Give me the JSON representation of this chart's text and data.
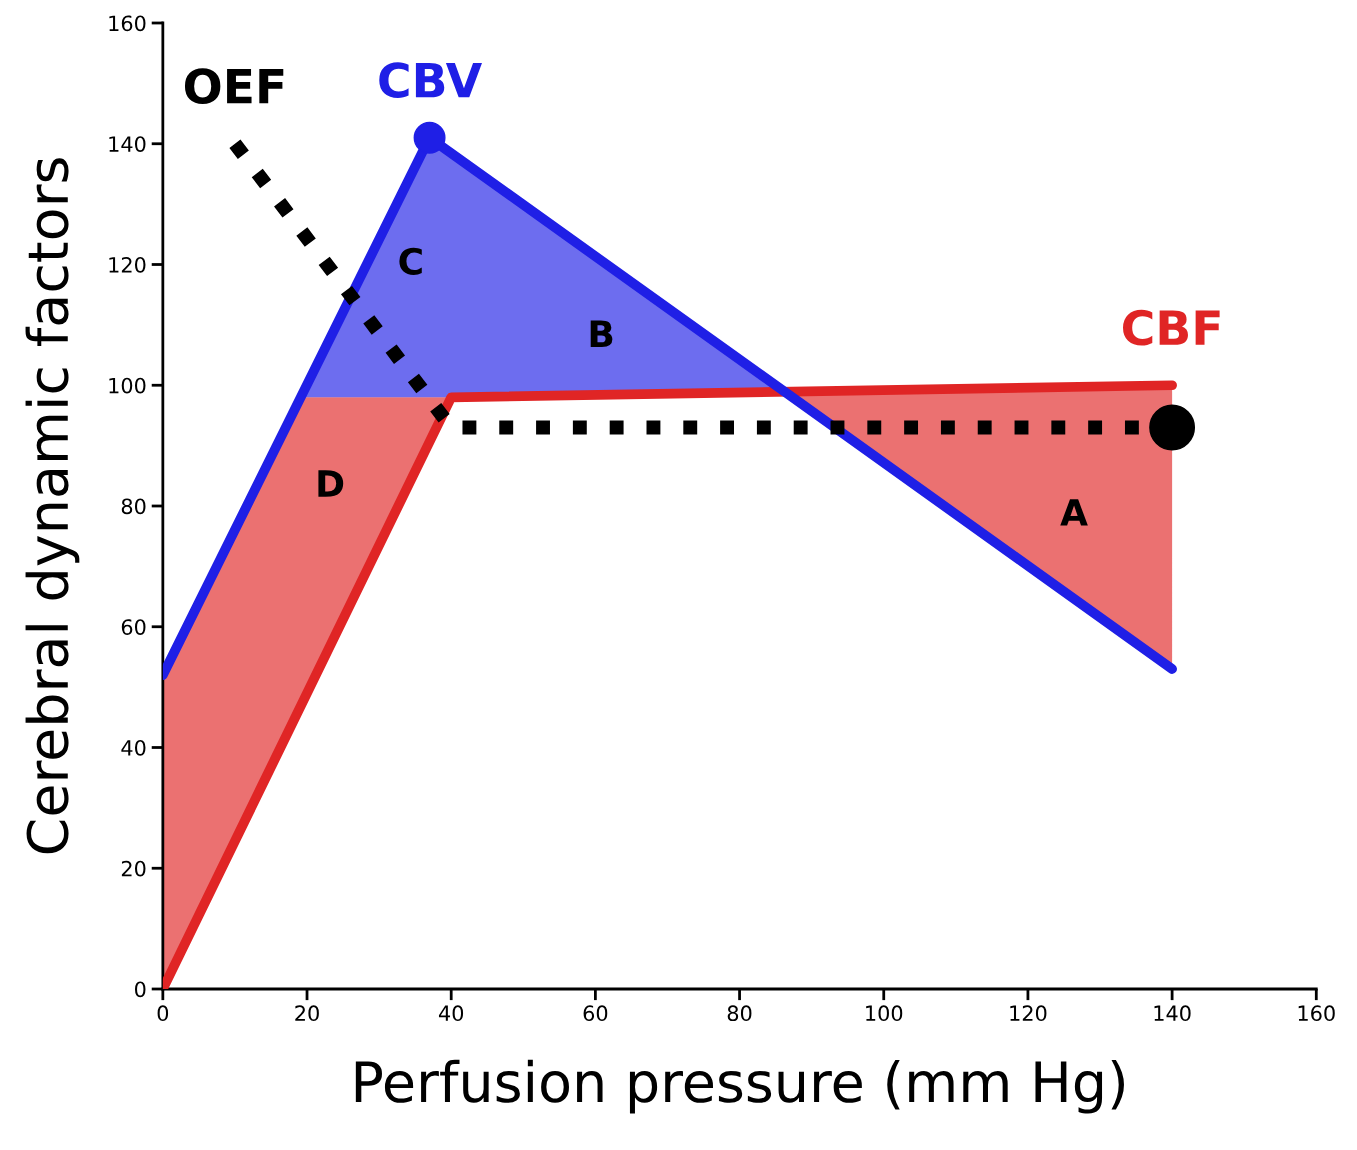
{
  "chart_data": {
    "type": "line",
    "xlabel": "Perfusion pressure (mm Hg)",
    "ylabel": "Cerebral dynamic factors",
    "xlim": [
      0,
      160
    ],
    "ylim": [
      0,
      160
    ],
    "xticks": [
      0,
      20,
      40,
      60,
      80,
      100,
      120,
      140,
      160
    ],
    "yticks": [
      0,
      20,
      40,
      60,
      80,
      100,
      120,
      140,
      160
    ],
    "grid": false,
    "legend": false,
    "series": [
      {
        "name": "CBF",
        "color": "#e02525",
        "x": [
          0,
          40,
          140
        ],
        "values": [
          0,
          98,
          100
        ],
        "line_style": "solid"
      },
      {
        "name": "CBV",
        "color": "#1f1fe6",
        "x": [
          0,
          37,
          140
        ],
        "values": [
          52,
          141,
          53
        ],
        "line_style": "solid"
      },
      {
        "name": "OEF",
        "color": "#000000",
        "x": [
          10,
          40,
          137
        ],
        "values": [
          140,
          93,
          93
        ],
        "line_style": "dotted"
      },
      {
        "type": "scatter",
        "color": "#1f1fe6",
        "x": [
          37
        ],
        "values": [
          141
        ],
        "marker": "circle"
      },
      {
        "type": "scatter",
        "color": "#000000",
        "x": [
          140
        ],
        "values": [
          93
        ],
        "marker": "circle"
      }
    ],
    "annotations": [
      "A",
      "B",
      "C",
      "D"
    ]
  }
}
